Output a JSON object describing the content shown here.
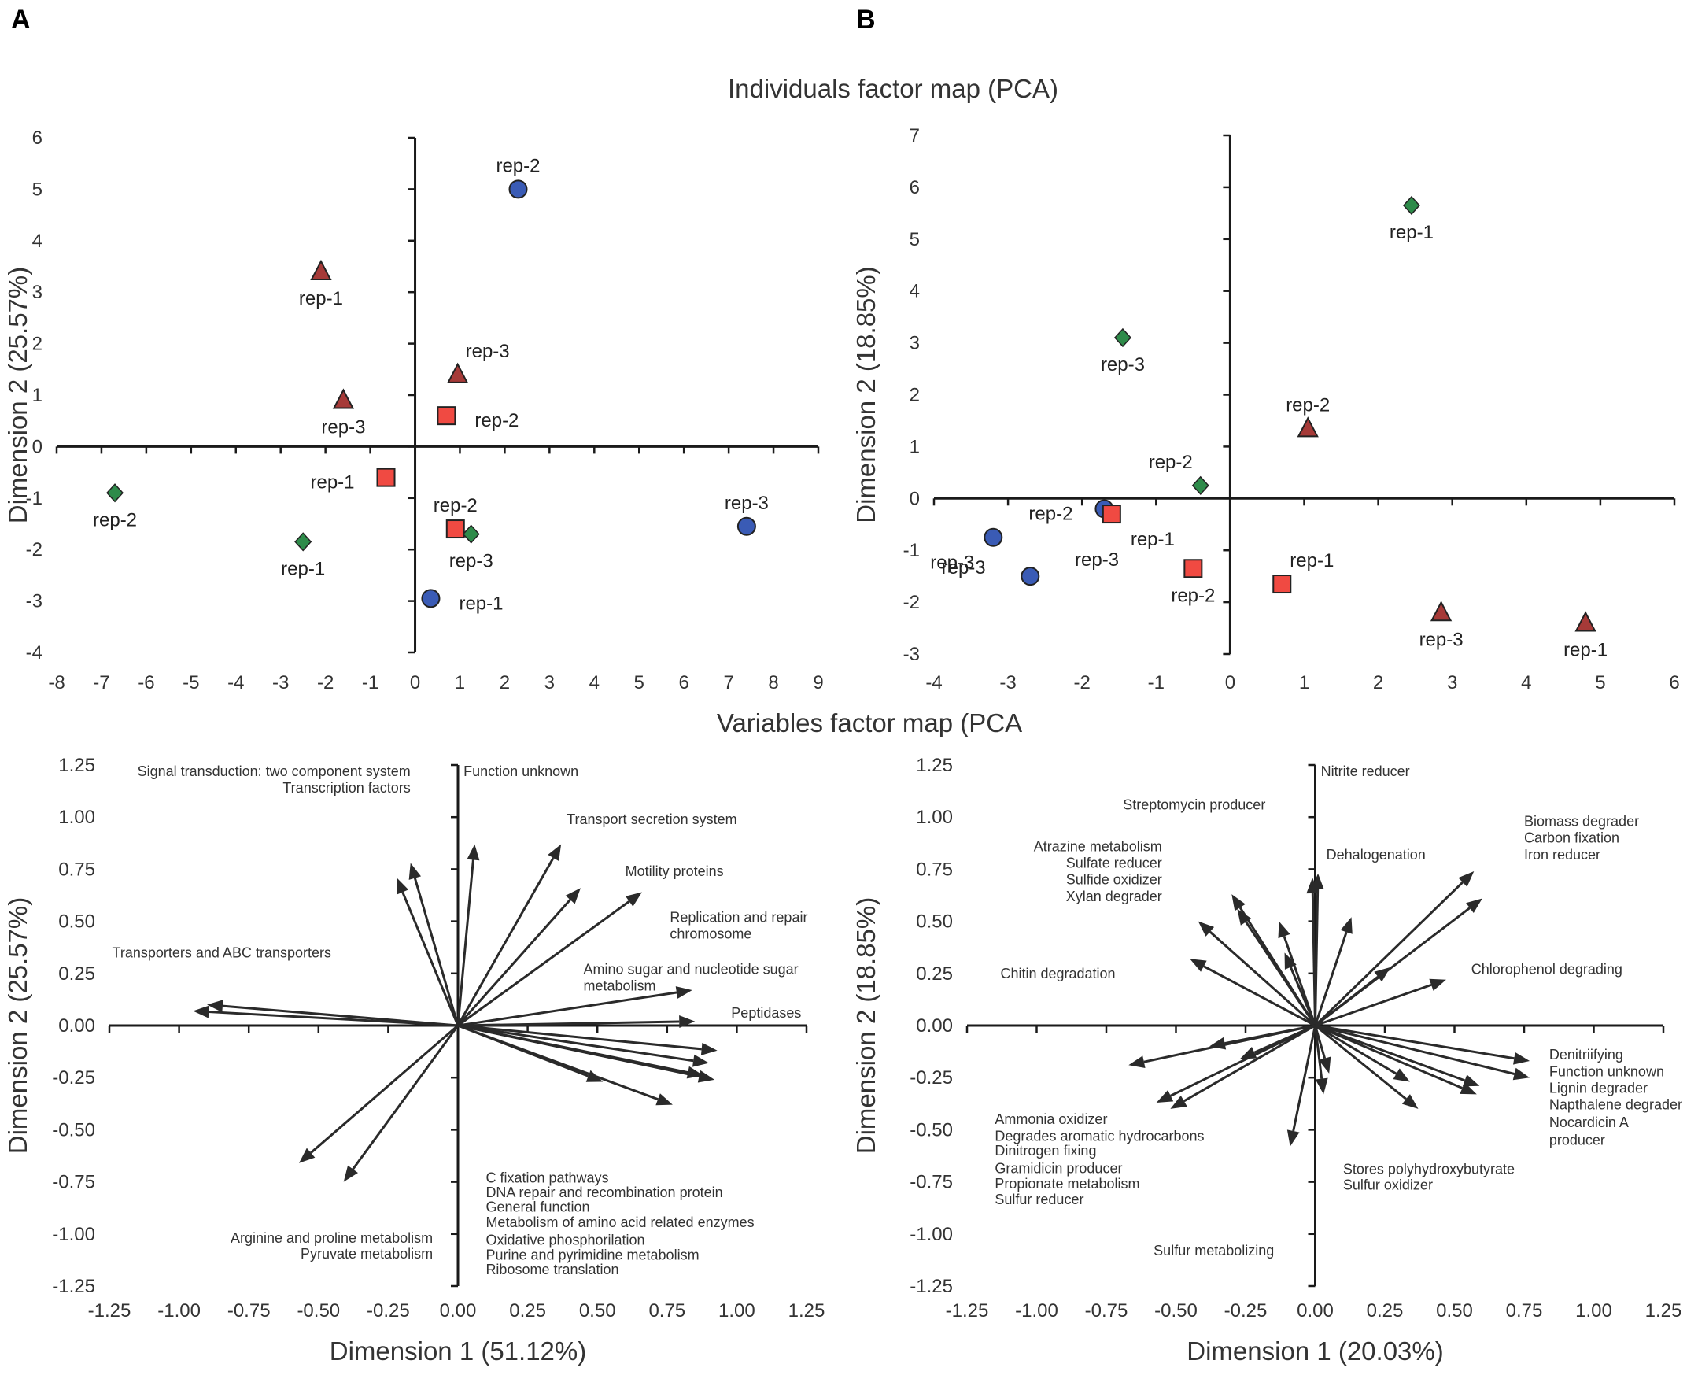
{
  "panel_labels": [
    "A",
    "B"
  ],
  "titles": {
    "individuals": "Individuals factor map (PCA)",
    "variables": "Variables factor map (PCA"
  },
  "colors": {
    "circle": "#3a5bb5",
    "square": "#f04a42",
    "triangle": "#a63a38",
    "diamond": "#2e8b4a",
    "axis": "#1a1a1a",
    "arrow": "#2a2a2a"
  },
  "chart_data": [
    {
      "id": "A-individuals",
      "type": "scatter",
      "xlabel": "",
      "ylabel": "Dimension 2 (25.57%)",
      "xlim": [
        -8,
        9
      ],
      "ylim": [
        -4,
        6
      ],
      "xticks": [
        "-8",
        "-7",
        "-6",
        "-5",
        "-4",
        "-3",
        "-2",
        "-1",
        "0",
        "1",
        "2",
        "3",
        "4",
        "5",
        "6",
        "7",
        "8",
        "9"
      ],
      "yticks": [
        "-4",
        "-3",
        "-2",
        "-1",
        "0",
        "1",
        "2",
        "3",
        "4",
        "5",
        "6"
      ],
      "points": [
        {
          "shape": "circle",
          "x": 2.3,
          "y": 5.0,
          "label": "rep-2",
          "pos": "above"
        },
        {
          "shape": "triangle",
          "x": -2.1,
          "y": 3.4,
          "label": "rep-1",
          "pos": "below"
        },
        {
          "shape": "triangle",
          "x": 0.95,
          "y": 1.4,
          "label": "rep-3",
          "pos": "above-right"
        },
        {
          "shape": "triangle",
          "x": -1.6,
          "y": 0.9,
          "label": "rep-3",
          "pos": "below"
        },
        {
          "shape": "square",
          "x": 0.7,
          "y": 0.6,
          "label": "rep-2",
          "pos": "right"
        },
        {
          "shape": "square",
          "x": -0.65,
          "y": -0.6,
          "label": "rep-1",
          "pos": "left"
        },
        {
          "shape": "diamond",
          "x": -6.7,
          "y": -0.9,
          "label": "rep-2",
          "pos": "below"
        },
        {
          "shape": "diamond",
          "x": -2.5,
          "y": -1.85,
          "label": "rep-1",
          "pos": "below"
        },
        {
          "shape": "square",
          "x": 0.9,
          "y": -1.6,
          "label": "rep-2",
          "pos": "above"
        },
        {
          "shape": "diamond",
          "x": 1.25,
          "y": -1.7,
          "label": "rep-3",
          "pos": "below"
        },
        {
          "shape": "circle",
          "x": 7.4,
          "y": -1.55,
          "label": "rep-3",
          "pos": "above"
        },
        {
          "shape": "circle",
          "x": 0.35,
          "y": -2.95,
          "label": "rep-1",
          "pos": "right"
        }
      ]
    },
    {
      "id": "B-individuals",
      "type": "scatter",
      "xlabel": "",
      "ylabel": "Dimension 2 (18.85%)",
      "xlim": [
        -4,
        6
      ],
      "ylim": [
        -3,
        7
      ],
      "xticks": [
        "-4",
        "-3",
        "-2",
        "-1",
        "0",
        "1",
        "2",
        "3",
        "4",
        "5",
        "6"
      ],
      "yticks": [
        "-3",
        "-2",
        "-1",
        "0",
        "1",
        "2",
        "3",
        "4",
        "5",
        "6",
        "7"
      ],
      "points": [
        {
          "shape": "diamond",
          "x": 2.45,
          "y": 5.65,
          "label": "rep-1",
          "pos": "below"
        },
        {
          "shape": "diamond",
          "x": -1.45,
          "y": 3.1,
          "label": "rep-3",
          "pos": "below"
        },
        {
          "shape": "triangle",
          "x": 1.05,
          "y": 1.35,
          "label": "rep-2",
          "pos": "above"
        },
        {
          "shape": "diamond",
          "x": -0.4,
          "y": 0.25,
          "label": "rep-2",
          "pos": "above-left"
        },
        {
          "shape": "circle",
          "x": -1.7,
          "y": -0.2,
          "label": "rep-2",
          "pos": "left"
        },
        {
          "shape": "square",
          "x": -1.6,
          "y": -0.3,
          "label": "rep-1",
          "pos": "below-right"
        },
        {
          "shape": "circle",
          "x": -3.2,
          "y": -0.75,
          "label": "rep-3",
          "pos": "below-left"
        },
        {
          "shape": "circle",
          "x": -2.7,
          "y": -1.5,
          "label": "rep-3",
          "pos": "none"
        },
        {
          "shape": "square",
          "x": -0.5,
          "y": -1.35,
          "label": "rep-2",
          "pos": "below"
        },
        {
          "shape": "square",
          "x": 0.7,
          "y": -1.65,
          "label": "rep-1",
          "pos": "above-right"
        },
        {
          "shape": "triangle",
          "x": 2.85,
          "y": -2.2,
          "label": "rep-3",
          "pos": "below"
        },
        {
          "shape": "triangle",
          "x": 4.8,
          "y": -2.4,
          "label": "rep-1",
          "pos": "below"
        }
      ],
      "free_labels": [
        {
          "text": "rep-3",
          "x": -3.6,
          "y": -1.45
        },
        {
          "text": "rep-3",
          "x": -1.8,
          "y": -1.3
        }
      ]
    },
    {
      "id": "A-variables",
      "type": "biplot-arrows",
      "xlabel": "Dimension 1 (51.12%)",
      "ylabel": "Dimension 2 (25.57%)",
      "xlim": [
        -1.25,
        1.25
      ],
      "ylim": [
        -1.25,
        1.25
      ],
      "xticks": [
        "-1.25",
        "-1.00",
        "-0.75",
        "-0.50",
        "-0.25",
        "0.00",
        "0.25",
        "0.50",
        "0.75",
        "1.00",
        "1.25"
      ],
      "yticks": [
        "-1.25",
        "-1.00",
        "-0.75",
        "-0.50",
        "-0.25",
        "0.00",
        "0.25",
        "0.50",
        "0.75",
        "1.00",
        "1.25"
      ],
      "arrows": [
        {
          "x": -0.9,
          "y": 0.1
        },
        {
          "x": -0.95,
          "y": 0.07
        },
        {
          "x": -0.22,
          "y": 0.71
        },
        {
          "x": -0.17,
          "y": 0.78
        },
        {
          "x": 0.06,
          "y": 0.87
        },
        {
          "x": 0.37,
          "y": 0.87
        },
        {
          "x": 0.44,
          "y": 0.66
        },
        {
          "x": 0.66,
          "y": 0.64
        },
        {
          "x": 0.84,
          "y": 0.17
        },
        {
          "x": 0.85,
          "y": 0.02
        },
        {
          "x": 0.93,
          "y": -0.12
        },
        {
          "x": 0.9,
          "y": -0.18
        },
        {
          "x": 0.88,
          "y": -0.24
        },
        {
          "x": 0.92,
          "y": -0.26
        },
        {
          "x": 0.52,
          "y": -0.27
        },
        {
          "x": 0.77,
          "y": -0.38
        },
        {
          "x": -0.57,
          "y": -0.66
        },
        {
          "x": -0.41,
          "y": -0.75
        }
      ],
      "labels": [
        {
          "text": "Signal transduction: two component system",
          "x": -0.17,
          "y": 1.22,
          "anchor": "end"
        },
        {
          "text": "Transcription factors",
          "x": -0.17,
          "y": 1.14,
          "anchor": "end"
        },
        {
          "text": "Function unknown",
          "x": 0.02,
          "y": 1.22,
          "anchor": "start"
        },
        {
          "text": "Transport secretion system",
          "x": 0.39,
          "y": 0.99,
          "anchor": "start"
        },
        {
          "text": "Motility proteins",
          "x": 0.6,
          "y": 0.74,
          "anchor": "start"
        },
        {
          "text": "Replication and repair",
          "x": 0.76,
          "y": 0.52,
          "anchor": "start"
        },
        {
          "text": "chromosome",
          "x": 0.76,
          "y": 0.44,
          "anchor": "start"
        },
        {
          "text": "Transporters and ABC transporters",
          "x": -1.24,
          "y": 0.35,
          "anchor": "start"
        },
        {
          "text": "Amino sugar and nucleotide sugar",
          "x": 0.45,
          "y": 0.27,
          "anchor": "start"
        },
        {
          "text": "metabolism",
          "x": 0.45,
          "y": 0.19,
          "anchor": "start"
        },
        {
          "text": "Peptidases",
          "x": 0.98,
          "y": 0.06,
          "anchor": "start"
        },
        {
          "text": "C fixation pathways",
          "x": 0.1,
          "y": -0.73,
          "anchor": "start"
        },
        {
          "text": "DNA repair and recombination protein",
          "x": 0.1,
          "y": -0.8,
          "anchor": "start"
        },
        {
          "text": "General function",
          "x": 0.1,
          "y": -0.87,
          "anchor": "start"
        },
        {
          "text": "Metabolism of amino acid related enzymes",
          "x": 0.1,
          "y": -0.945,
          "anchor": "start"
        },
        {
          "text": "Oxidative phosphorilation",
          "x": 0.1,
          "y": -1.03,
          "anchor": "start"
        },
        {
          "text": "Purine and pyrimidine metabolism",
          "x": 0.1,
          "y": -1.1,
          "anchor": "start"
        },
        {
          "text": "Ribosome translation",
          "x": 0.1,
          "y": -1.17,
          "anchor": "start"
        },
        {
          "text": "Arginine and proline metabolism",
          "x": -0.09,
          "y": -1.02,
          "anchor": "end"
        },
        {
          "text": "Pyruvate metabolism",
          "x": -0.09,
          "y": -1.095,
          "anchor": "end"
        }
      ]
    },
    {
      "id": "B-variables",
      "type": "biplot-arrows",
      "xlabel": "Dimension 1 (20.03%)",
      "ylabel": "Dimension 2 (18.85%)",
      "xlim": [
        -1.25,
        1.25
      ],
      "ylim": [
        -1.25,
        1.25
      ],
      "xticks": [
        "-1.25",
        "-1.00",
        "-0.75",
        "-0.50",
        "-0.25",
        "0.00",
        "0.25",
        "0.50",
        "0.75",
        "1.00",
        "1.25"
      ],
      "yticks": [
        "-1.25",
        "-1.00",
        "-0.75",
        "-0.50",
        "-0.25",
        "0.00",
        "0.25",
        "0.50",
        "0.75",
        "1.00",
        "1.25"
      ],
      "arrows": [
        {
          "x": -0.01,
          "y": 0.71
        },
        {
          "x": 0.01,
          "y": 0.73
        },
        {
          "x": -0.3,
          "y": 0.63
        },
        {
          "x": -0.28,
          "y": 0.56
        },
        {
          "x": -0.42,
          "y": 0.5
        },
        {
          "x": -0.45,
          "y": 0.32
        },
        {
          "x": -0.13,
          "y": 0.5
        },
        {
          "x": -0.11,
          "y": 0.35
        },
        {
          "x": 0.13,
          "y": 0.52
        },
        {
          "x": 0.27,
          "y": 0.28
        },
        {
          "x": 0.47,
          "y": 0.22
        },
        {
          "x": 0.57,
          "y": 0.74
        },
        {
          "x": 0.6,
          "y": 0.61
        },
        {
          "x": -0.67,
          "y": -0.19
        },
        {
          "x": -0.57,
          "y": -0.37
        },
        {
          "x": -0.52,
          "y": -0.4
        },
        {
          "x": -0.38,
          "y": -0.1
        },
        {
          "x": -0.27,
          "y": -0.16
        },
        {
          "x": -0.09,
          "y": -0.58
        },
        {
          "x": 0.03,
          "y": -0.33
        },
        {
          "x": 0.05,
          "y": -0.23
        },
        {
          "x": 0.34,
          "y": -0.27
        },
        {
          "x": 0.37,
          "y": -0.4
        },
        {
          "x": 0.58,
          "y": -0.33
        },
        {
          "x": 0.59,
          "y": -0.29
        },
        {
          "x": 0.77,
          "y": -0.17
        },
        {
          "x": 0.77,
          "y": -0.25
        }
      ],
      "labels": [
        {
          "text": "Nitrite reducer",
          "x": 0.02,
          "y": 1.22,
          "anchor": "start"
        },
        {
          "text": "Streptomycin producer",
          "x": -0.69,
          "y": 1.06,
          "anchor": "start"
        },
        {
          "text": "Biomass degrader",
          "x": 0.75,
          "y": 0.98,
          "anchor": "start"
        },
        {
          "text": "Carbon fixation",
          "x": 0.75,
          "y": 0.9,
          "anchor": "start"
        },
        {
          "text": "Iron reducer",
          "x": 0.75,
          "y": 0.82,
          "anchor": "start"
        },
        {
          "text": "Atrazine metabolism",
          "x": -0.55,
          "y": 0.86,
          "anchor": "end"
        },
        {
          "text": "Sulfate reducer",
          "x": -0.55,
          "y": 0.78,
          "anchor": "end"
        },
        {
          "text": "Sulfide oxidizer",
          "x": -0.55,
          "y": 0.7,
          "anchor": "end"
        },
        {
          "text": "Xylan degrader",
          "x": -0.55,
          "y": 0.62,
          "anchor": "end"
        },
        {
          "text": "Dehalogenation",
          "x": 0.04,
          "y": 0.82,
          "anchor": "start"
        },
        {
          "text": "Chitin degradation",
          "x": -1.13,
          "y": 0.25,
          "anchor": "start"
        },
        {
          "text": "Chlorophenol degrading",
          "x": 0.56,
          "y": 0.27,
          "anchor": "start"
        },
        {
          "text": "Denitriifying",
          "x": 0.84,
          "y": -0.14,
          "anchor": "start"
        },
        {
          "text": "Function unknown",
          "x": 0.84,
          "y": -0.22,
          "anchor": "start"
        },
        {
          "text": "Lignin degrader",
          "x": 0.84,
          "y": -0.3,
          "anchor": "start"
        },
        {
          "text": "Napthalene degrader",
          "x": 0.84,
          "y": -0.38,
          "anchor": "start"
        },
        {
          "text": "Nocardicin A",
          "x": 0.84,
          "y": -0.465,
          "anchor": "start"
        },
        {
          "text": "producer",
          "x": 0.84,
          "y": -0.55,
          "anchor": "start"
        },
        {
          "text": "Ammonia oxidizer",
          "x": -1.15,
          "y": -0.45,
          "anchor": "start"
        },
        {
          "text": "Degrades aromatic hydrocarbons",
          "x": -1.15,
          "y": -0.53,
          "anchor": "start"
        },
        {
          "text": "Dinitrogen fixing",
          "x": -1.15,
          "y": -0.6,
          "anchor": "start"
        },
        {
          "text": "Gramidicin producer",
          "x": -1.15,
          "y": -0.685,
          "anchor": "start"
        },
        {
          "text": "Propionate metabolism",
          "x": -1.15,
          "y": -0.76,
          "anchor": "start"
        },
        {
          "text": "Sulfur reducer",
          "x": -1.15,
          "y": -0.835,
          "anchor": "start"
        },
        {
          "text": "Stores polyhydroxybutyrate",
          "x": 0.1,
          "y": -0.69,
          "anchor": "start"
        },
        {
          "text": "Sulfur oxidizer",
          "x": 0.1,
          "y": -0.765,
          "anchor": "start"
        },
        {
          "text": "Sulfur metabolizing",
          "x": -0.58,
          "y": -1.08,
          "anchor": "start"
        }
      ]
    }
  ]
}
